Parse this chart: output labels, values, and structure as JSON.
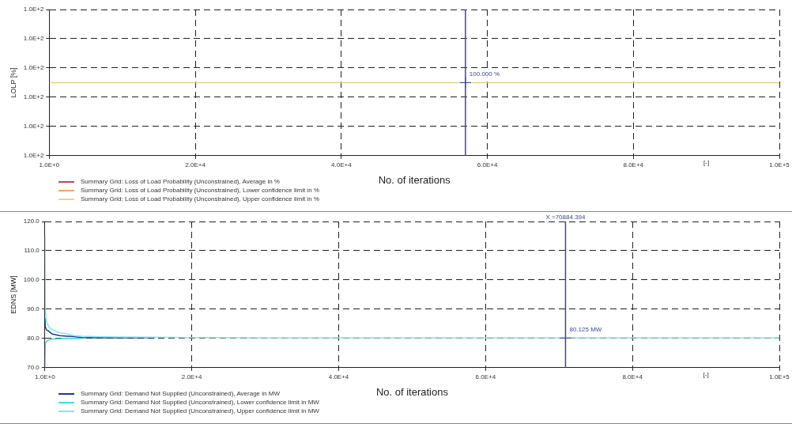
{
  "chart_data": [
    {
      "type": "line",
      "ylabel": "LOLP [%]",
      "xlabel": "No. of iterations",
      "x": [
        1,
        100000
      ],
      "xlim": [
        1,
        100000
      ],
      "xticks": [
        {
          "value": 1,
          "label": "1.0E+0"
        },
        {
          "value": 20000,
          "label": "2.0E+4"
        },
        {
          "value": 40000,
          "label": "4.0E+4"
        },
        {
          "value": 60000,
          "label": "6.0E+4"
        },
        {
          "value": 80000,
          "label": "8.0E+4"
        },
        {
          "value": 100000,
          "label": "1.0E+5"
        }
      ],
      "ylim": [
        99.95,
        100.05
      ],
      "yticks": [
        {
          "value": 99.95,
          "label": "1.0E+2"
        },
        {
          "value": 99.97,
          "label": "1.0E+2"
        },
        {
          "value": 99.99,
          "label": "1.0E+2"
        },
        {
          "value": 100.01,
          "label": "1.0E+2"
        },
        {
          "value": 100.03,
          "label": "1.0E+2"
        },
        {
          "value": 100.05,
          "label": "1.0E+2"
        }
      ],
      "series": [
        {
          "name": "Summary Grid: Loss of Load Probability (Unconstrained), Average in %",
          "color": "#d04050",
          "values": [
            null,
            null
          ]
        },
        {
          "name": "Summary Grid: Loss of Load Probability (Unconstrained), Lower confidence limit in %",
          "color": "#f0a860",
          "values": [
            null,
            null
          ]
        },
        {
          "name": "Summary Grid: Loss of Load Probability (Unconstrained), Upper confidence limit in %",
          "color": "#e8d488",
          "values": [
            100,
            100
          ]
        }
      ],
      "ref_lines": [
        {
          "axis": "x",
          "value": 57000,
          "color": "#3a4898"
        }
      ],
      "annotations": [
        {
          "text": "100.000 %",
          "x": 57000,
          "y": 100
        },
        "[-]"
      ],
      "grid": true,
      "legend": "bottom left",
      "marker": "none",
      "line_style": "solid"
    },
    {
      "type": "line",
      "ylabel": "EDNS [MW]",
      "xlabel": "No. of iterations",
      "x": [
        1,
        50,
        200,
        500,
        1000,
        2000,
        3000,
        4000,
        5000,
        7000,
        10000,
        15000,
        20000,
        30000,
        40000,
        60000,
        80000,
        100000
      ],
      "xlim": [
        1,
        100000
      ],
      "xticks": [
        {
          "value": 1,
          "label": "1.0E+0"
        },
        {
          "value": 20000,
          "label": "2.0E+4"
        },
        {
          "value": 40000,
          "label": "4.0E+4"
        },
        {
          "value": 60000,
          "label": "6.0E+4"
        },
        {
          "value": 80000,
          "label": "8.0E+4"
        },
        {
          "value": 100000,
          "label": "1.0E+5"
        }
      ],
      "ylim": [
        70,
        120
      ],
      "yticks": [
        {
          "value": 70,
          "label": "70.0"
        },
        {
          "value": 80,
          "label": "80.0"
        },
        {
          "value": 90,
          "label": "90.0"
        },
        {
          "value": 100,
          "label": "100.0"
        },
        {
          "value": 110,
          "label": "110.0"
        },
        {
          "value": 120,
          "label": "120.0"
        }
      ],
      "series": [
        {
          "name": "Summary Grid: Demand Not Supplied (Unconstrained), Average in MW",
          "color": "#1f3a93",
          "values": [
            87,
            84,
            83,
            82.5,
            81.5,
            81,
            80.8,
            80.6,
            80.3,
            80.2,
            80.2,
            80.3,
            null,
            null,
            null,
            null,
            null,
            null
          ]
        },
        {
          "name": "Summary Grid: Demand Not Supplied (Unconstrained), Lower confidence limit in MW",
          "color": "#40d8e0",
          "values": [
            70,
            78,
            79,
            79.5,
            79.8,
            79.9,
            80,
            80,
            80,
            null,
            null,
            null,
            null,
            null,
            null,
            null,
            null,
            null
          ]
        },
        {
          "name": "Summary Grid: Demand Not Supplied (Unconstrained), Upper confidence limit in MW",
          "color": "#80e8f0",
          "values": [
            115,
            90,
            86,
            84,
            83,
            82,
            81.5,
            81,
            80.8,
            80.6,
            80.5,
            80.4,
            80.3,
            80.2,
            80.2,
            80.2,
            80.2,
            80.2
          ]
        }
      ],
      "ref_lines": [
        {
          "axis": "x",
          "value": 70884.394,
          "label": "X =70884.394",
          "color": "#3a4898"
        }
      ],
      "annotations": [
        {
          "text": "80.125 MW",
          "x": 70884.394,
          "y": 80.125
        },
        "[-]"
      ],
      "grid": true,
      "legend": "bottom left",
      "marker": "none",
      "line_style": "solid"
    }
  ]
}
